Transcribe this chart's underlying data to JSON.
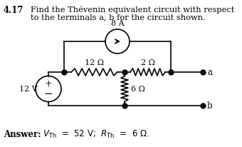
{
  "bg_color": "#ffffff",
  "text_color": "#000000",
  "circuit_color": "#000000",
  "lw": 1.2,
  "title_num": "4.17",
  "title_line1": "Find the Thévenin equivalent circuit with respect",
  "title_line2": "to the terminals a, b for the circuit shown.",
  "label_8A": "8 A",
  "label_12ohm": "12 Ω",
  "label_2ohm": "2 Ω",
  "label_6ohm": "6 Ω",
  "label_12V": "12 V",
  "label_a": "a",
  "label_b": "b",
  "answer_bold": "Answer:",
  "answer_math": "$V_{\\mathrm{Th}}$  =  52 V;  $R_{\\mathrm{Th}}$  =  6 Ω."
}
